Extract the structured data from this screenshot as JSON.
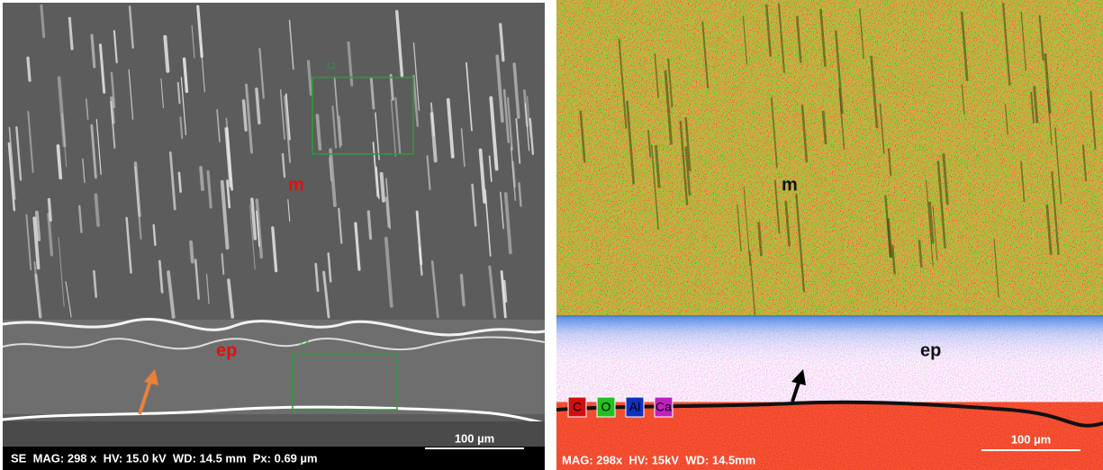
{
  "left_panel": {
    "labels": {
      "matrix": "m",
      "epoxy": "ep"
    },
    "box_labels": [
      "12",
      "13"
    ],
    "footer": "SE  MAG: 298 x  HV: 15.0 kV  WD: 14.5 mm  Px: 0.69 µm",
    "scale_bar": "100 µm"
  },
  "right_panel": {
    "labels": {
      "matrix": "m",
      "epoxy": "ep"
    },
    "legend": [
      "C",
      "O",
      "Al",
      "Ca"
    ],
    "footer": "MAG: 298x  HV: 15kV  WD: 14.5mm",
    "scale_bar": "100 µm"
  }
}
